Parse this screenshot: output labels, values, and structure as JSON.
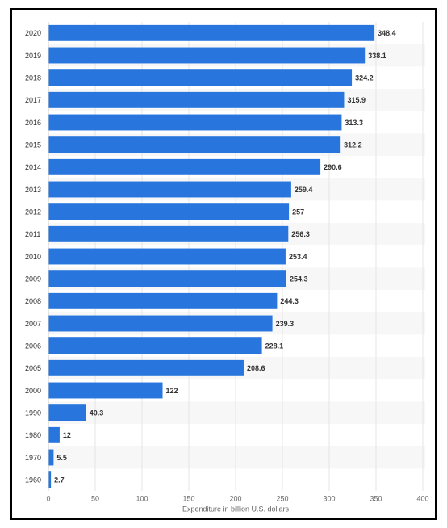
{
  "chart_data": {
    "type": "bar",
    "orientation": "horizontal",
    "x_label": "Expenditure in billion U.S. dollars",
    "categories": [
      "2020",
      "2019",
      "2018",
      "2017",
      "2016",
      "2015",
      "2014",
      "2013",
      "2012",
      "2011",
      "2010",
      "2009",
      "2008",
      "2007",
      "2006",
      "2005",
      "2000",
      "1990",
      "1980",
      "1970",
      "1960"
    ],
    "values": [
      348.4,
      338.1,
      324.2,
      315.9,
      313.3,
      312.2,
      290.6,
      259.4,
      257,
      256.3,
      253.4,
      254.3,
      244.3,
      239.3,
      228.1,
      208.6,
      122,
      40.3,
      12,
      5.5,
      2.7
    ],
    "color": "#2876dd",
    "xlim": [
      0,
      400
    ],
    "xticks": [
      0,
      50,
      100,
      150,
      200,
      250,
      300,
      350,
      400
    ],
    "grid": true
  }
}
